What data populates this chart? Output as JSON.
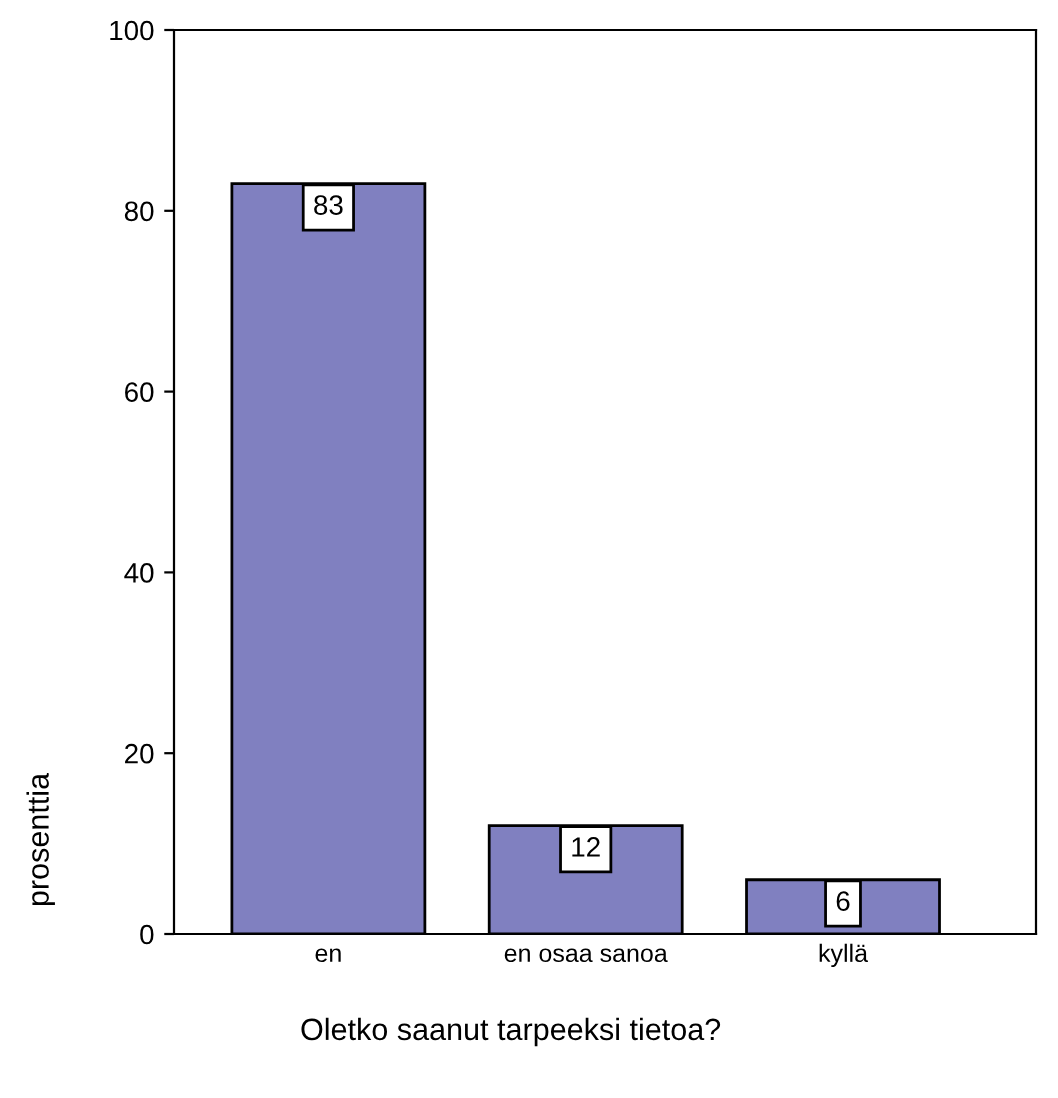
{
  "chart_data": {
    "type": "bar",
    "xlabel": "Oletko saanut tarpeeksi tietoa?",
    "ylabel": "prosenttia",
    "categories": [
      "en",
      "en osaa sanoa",
      "kyllä"
    ],
    "values": [
      83,
      12,
      6
    ],
    "color": "#8080c0",
    "ylim": [
      0,
      100
    ],
    "yticks": [
      0,
      20,
      40,
      60,
      80,
      100
    ],
    "grid": false,
    "data_labels": true
  }
}
